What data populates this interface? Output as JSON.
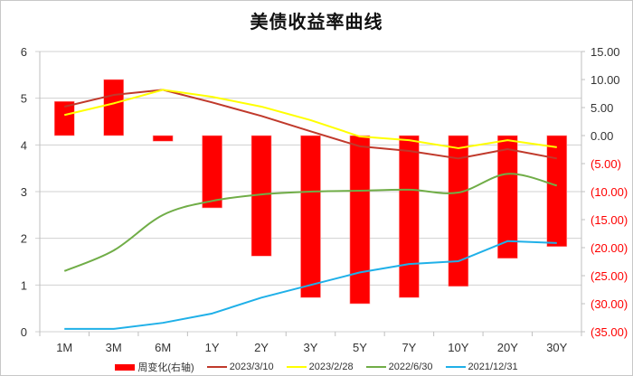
{
  "title": "美债收益率曲线",
  "chart_data": {
    "type": "bar+line",
    "title": "美债收益率曲线",
    "categories": [
      "1M",
      "3M",
      "6M",
      "1Y",
      "2Y",
      "3Y",
      "5Y",
      "7Y",
      "10Y",
      "20Y",
      "30Y"
    ],
    "left_axis": {
      "min": 0,
      "max": 6,
      "ticks": [
        "0",
        "1",
        "2",
        "3",
        "4",
        "5",
        "6"
      ]
    },
    "right_axis": {
      "min": -35,
      "max": 15,
      "ticks": [
        "(35.00)",
        "(30.00)",
        "(25.00)",
        "(20.00)",
        "(15.00)",
        "(10.00)",
        "(5.00)",
        "0.00",
        "5.00",
        "10.00",
        "15.00"
      ]
    },
    "grid": true,
    "legend_position": "bottom",
    "series": [
      {
        "name": "周变化(右轴)",
        "type": "bar",
        "axis": "right",
        "color": "#ff0000",
        "values": [
          6.1,
          10.0,
          -1.0,
          -12.9,
          -21.5,
          -28.9,
          -30.0,
          -28.9,
          -26.9,
          -21.9,
          -19.8
        ]
      },
      {
        "name": "2023/3/10",
        "type": "line",
        "axis": "left",
        "color": "#c0392b",
        "values": [
          4.82,
          5.07,
          5.18,
          4.91,
          4.62,
          4.29,
          3.97,
          3.87,
          3.71,
          3.91,
          3.71
        ]
      },
      {
        "name": "2023/2/28",
        "type": "line",
        "axis": "left",
        "color": "#ffff00",
        "values": [
          4.64,
          4.89,
          5.18,
          5.03,
          4.82,
          4.53,
          4.18,
          4.1,
          3.93,
          4.1,
          3.95
        ]
      },
      {
        "name": "2022/6/30",
        "type": "line",
        "axis": "left",
        "color": "#70ad47",
        "smooth": true,
        "values": [
          1.3,
          1.74,
          2.5,
          2.8,
          2.94,
          3.0,
          3.02,
          3.04,
          2.98,
          3.38,
          3.13
        ]
      },
      {
        "name": "2021/12/31",
        "type": "line",
        "axis": "left",
        "color": "#1fb0e8",
        "values": [
          0.06,
          0.06,
          0.19,
          0.39,
          0.73,
          1.0,
          1.27,
          1.45,
          1.51,
          1.94,
          1.9
        ]
      }
    ]
  },
  "colors": {
    "negative_tick": "#ff0000",
    "positive_tick": "#333333",
    "grid": "#d0d0d0"
  }
}
